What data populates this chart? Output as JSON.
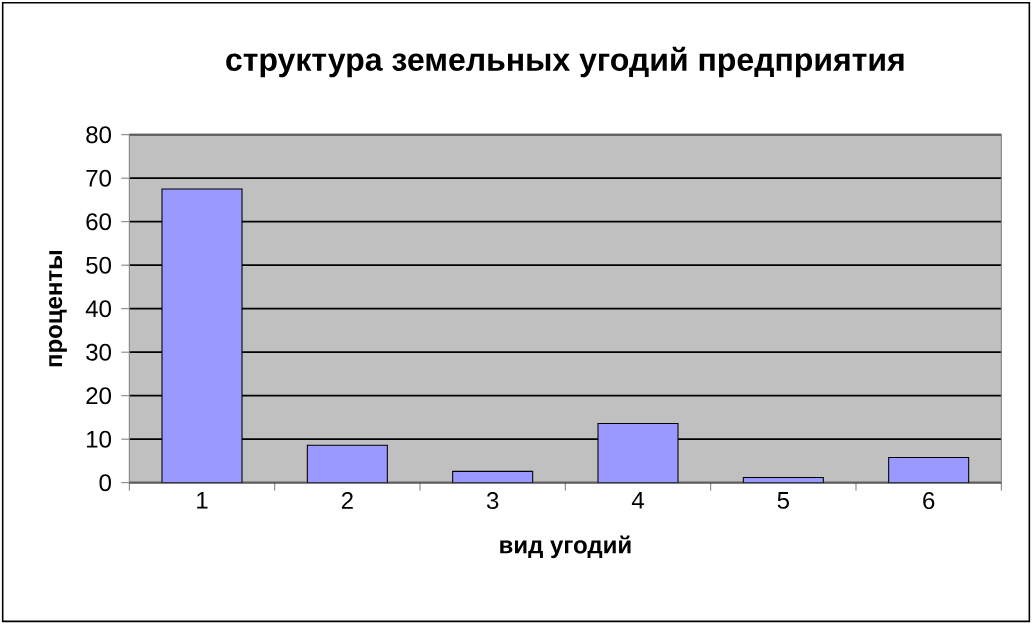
{
  "chart_data": {
    "type": "bar",
    "title": "структура земельных угодий предприятия",
    "xlabel": "вид угодий",
    "ylabel": "проценты",
    "categories": [
      "1",
      "2",
      "3",
      "4",
      "5",
      "6"
    ],
    "values": [
      67.5,
      8.6,
      2.6,
      13.6,
      1.2,
      5.8
    ],
    "color": "#9999ff",
    "ylim": [
      0,
      80
    ],
    "yticks": [
      0,
      10,
      20,
      30,
      40,
      50,
      60,
      70,
      80
    ],
    "grid": "y"
  }
}
